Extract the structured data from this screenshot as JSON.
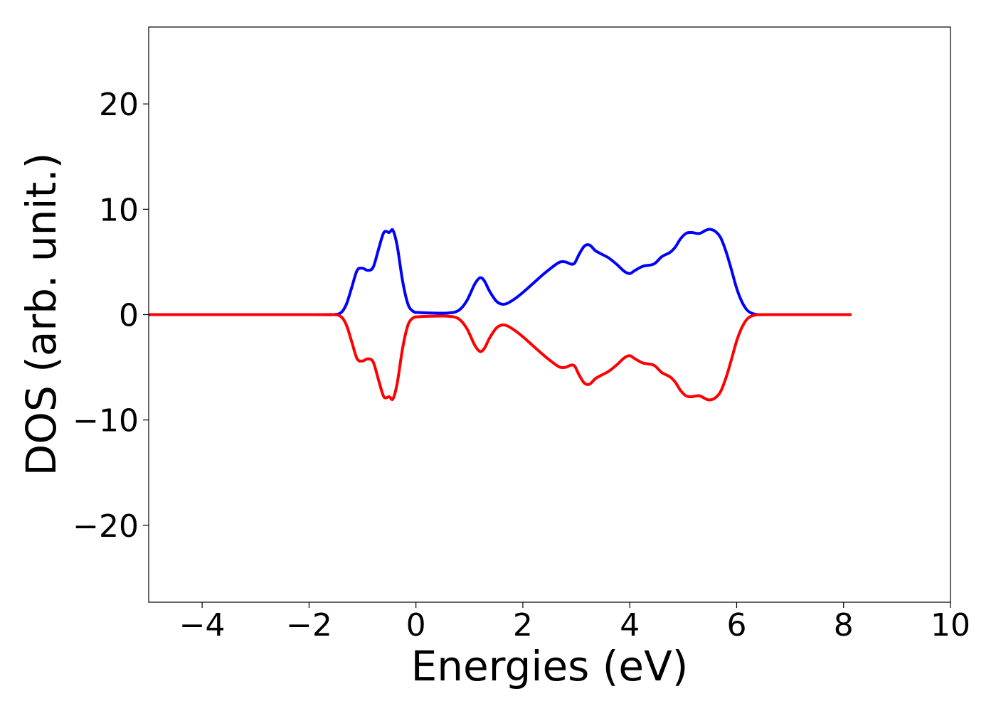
{
  "chart_data": {
    "type": "line",
    "title": "",
    "xlabel": "Energies (eV)",
    "ylabel": "DOS (arb. unit.)",
    "xlim": [
      -5,
      10
    ],
    "ylim": [
      -27.3,
      27.3
    ],
    "x_ticks": [
      -4,
      -2,
      0,
      2,
      4,
      6,
      8,
      10
    ],
    "x_tick_labels": [
      "−4",
      "−2",
      "0",
      "2",
      "4",
      "6",
      "8",
      "10"
    ],
    "y_ticks": [
      -20,
      -10,
      0,
      10,
      20
    ],
    "y_tick_labels": [
      "−20",
      "−10",
      "0",
      "10",
      "20"
    ],
    "grid": false,
    "legend": "none",
    "series": [
      {
        "color": "#0000ff",
        "x": [
          -5,
          -2,
          -1.55,
          -1.4,
          -1.3,
          -1.2,
          -1.1,
          -1.0,
          -0.9,
          -0.8,
          -0.7,
          -0.6,
          -0.5,
          -0.43,
          -0.35,
          -0.25,
          -0.15,
          -0.05,
          0.05,
          0.3,
          0.6,
          0.8,
          0.95,
          1.1,
          1.2,
          1.28,
          1.38,
          1.5,
          1.6,
          1.7,
          1.85,
          2.0,
          2.2,
          2.4,
          2.6,
          2.7,
          2.8,
          2.9,
          2.97,
          3.05,
          3.15,
          3.25,
          3.35,
          3.45,
          3.6,
          3.75,
          3.9,
          4.0,
          4.1,
          4.25,
          4.45,
          4.6,
          4.75,
          4.85,
          4.95,
          5.05,
          5.15,
          5.3,
          5.42,
          5.5,
          5.6,
          5.7,
          5.8,
          5.9,
          6.0,
          6.1,
          6.2,
          6.3,
          6.4,
          6.6,
          8.15
        ],
        "y": [
          0,
          0,
          0,
          0.2,
          1.0,
          2.6,
          4.2,
          4.4,
          4.2,
          4.5,
          6.2,
          7.8,
          7.8,
          8.0,
          6.5,
          3.2,
          1.0,
          0.3,
          0.2,
          0.15,
          0.15,
          0.4,
          1.3,
          2.9,
          3.5,
          3.2,
          2.2,
          1.3,
          1.0,
          1.05,
          1.5,
          2.1,
          3.0,
          3.9,
          4.7,
          5.0,
          5.0,
          4.8,
          4.9,
          5.7,
          6.5,
          6.6,
          6.1,
          5.8,
          5.4,
          4.8,
          4.1,
          3.9,
          4.2,
          4.6,
          4.8,
          5.5,
          5.9,
          6.4,
          7.2,
          7.7,
          7.8,
          7.7,
          8.0,
          8.1,
          7.9,
          7.3,
          6.0,
          4.3,
          2.5,
          1.2,
          0.4,
          0.1,
          0,
          0,
          0
        ]
      },
      {
        "color": "#ff0000",
        "x": [
          -5,
          -2,
          -1.55,
          -1.4,
          -1.3,
          -1.2,
          -1.1,
          -1.0,
          -0.9,
          -0.8,
          -0.7,
          -0.6,
          -0.5,
          -0.43,
          -0.35,
          -0.25,
          -0.15,
          -0.05,
          0.05,
          0.3,
          0.6,
          0.8,
          0.95,
          1.1,
          1.2,
          1.28,
          1.38,
          1.5,
          1.6,
          1.7,
          1.85,
          2.0,
          2.2,
          2.4,
          2.6,
          2.7,
          2.8,
          2.9,
          2.97,
          3.05,
          3.15,
          3.25,
          3.35,
          3.45,
          3.6,
          3.75,
          3.9,
          4.0,
          4.1,
          4.25,
          4.45,
          4.6,
          4.75,
          4.85,
          4.95,
          5.05,
          5.15,
          5.3,
          5.42,
          5.5,
          5.6,
          5.7,
          5.8,
          5.9,
          6.0,
          6.1,
          6.2,
          6.3,
          6.4,
          6.6,
          8.15
        ],
        "y": [
          0,
          0,
          0,
          -0.2,
          -1.0,
          -2.6,
          -4.2,
          -4.4,
          -4.2,
          -4.5,
          -6.2,
          -7.8,
          -7.8,
          -8.0,
          -6.5,
          -3.2,
          -1.0,
          -0.3,
          -0.2,
          -0.15,
          -0.15,
          -0.4,
          -1.3,
          -2.9,
          -3.5,
          -3.2,
          -2.2,
          -1.3,
          -1.0,
          -1.05,
          -1.5,
          -2.1,
          -3.0,
          -3.9,
          -4.7,
          -5.0,
          -5.0,
          -4.8,
          -4.9,
          -5.7,
          -6.5,
          -6.6,
          -6.1,
          -5.8,
          -5.4,
          -4.8,
          -4.1,
          -3.9,
          -4.2,
          -4.6,
          -4.8,
          -5.5,
          -5.9,
          -6.4,
          -7.2,
          -7.7,
          -7.8,
          -7.7,
          -8.0,
          -8.1,
          -7.9,
          -7.3,
          -6.0,
          -4.3,
          -2.5,
          -1.2,
          -0.4,
          -0.1,
          0,
          0,
          0
        ]
      }
    ]
  }
}
